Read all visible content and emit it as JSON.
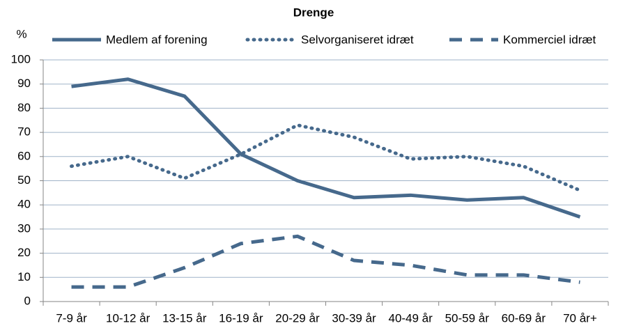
{
  "chart_data": {
    "type": "line",
    "title": "Drenge",
    "y_label": "%",
    "categories": [
      "7-9 år",
      "10-12 år",
      "13-15 år",
      "16-19 år",
      "20-29 år",
      "30-39 år",
      "40-49 år",
      "50-59 år",
      "60-69 år",
      "70 år+"
    ],
    "series": [
      {
        "name": "Medlem af forening",
        "color": "#46698c",
        "style": "solid",
        "values": [
          89,
          92,
          85,
          61,
          50,
          43,
          44,
          42,
          43,
          35
        ]
      },
      {
        "name": "Selvorganiseret idræt",
        "color": "#46698c",
        "style": "dotted",
        "values": [
          56,
          60,
          51,
          61,
          73,
          68,
          59,
          60,
          56,
          46
        ]
      },
      {
        "name": "Kommerciel idræt",
        "color": "#46698c",
        "style": "dashed",
        "values": [
          6,
          6,
          14,
          24,
          27,
          17,
          15,
          11,
          11,
          8
        ]
      }
    ],
    "ylim": [
      0,
      100
    ],
    "yticks": [
      0,
      10,
      20,
      30,
      40,
      50,
      60,
      70,
      80,
      90,
      100
    ],
    "grid": true,
    "legend": "top"
  }
}
